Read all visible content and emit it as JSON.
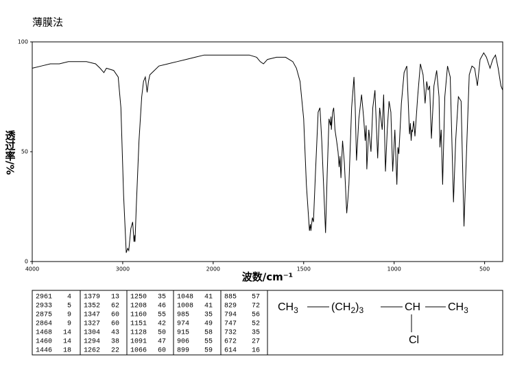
{
  "chart_data": {
    "type": "line",
    "title": "薄膜法",
    "x_label": "波数/cm⁻¹",
    "y_label": "透过率/%",
    "color": "#000000",
    "xlim": [
      4000,
      400
    ],
    "x_scale": {
      "break": 2000,
      "factor": 2
    },
    "xticks": [
      4000,
      3000,
      2000,
      1500,
      1000,
      500
    ],
    "ylim": [
      0,
      100
    ],
    "yticks": [
      0,
      50,
      100
    ],
    "x": [
      4000,
      3900,
      3800,
      3700,
      3600,
      3500,
      3400,
      3300,
      3250,
      3208,
      3180,
      3100,
      3050,
      3020,
      2990,
      2961,
      2945,
      2933,
      2910,
      2890,
      2875,
      2868,
      2864,
      2850,
      2820,
      2790,
      2770,
      2750,
      2730,
      2715,
      2700,
      2650,
      2600,
      2500,
      2400,
      2300,
      2200,
      2100,
      2000,
      1900,
      1800,
      1760,
      1740,
      1722,
      1700,
      1650,
      1600,
      1560,
      1540,
      1520,
      1500,
      1485,
      1468,
      1463,
      1460,
      1452,
      1446,
      1435,
      1420,
      1410,
      1400,
      1390,
      1379,
      1370,
      1360,
      1352,
      1349,
      1347,
      1340,
      1334,
      1327,
      1318,
      1310,
      1304,
      1299,
      1294,
      1285,
      1275,
      1262,
      1256,
      1250,
      1235,
      1222,
      1215,
      1208,
      1195,
      1180,
      1168,
      1160,
      1155,
      1151,
      1140,
      1128,
      1118,
      1106,
      1091,
      1080,
      1066,
      1058,
      1048,
      1038,
      1028,
      1018,
      1008,
      996,
      985,
      979,
      974,
      960,
      945,
      930,
      915,
      910,
      906,
      902,
      899,
      892,
      885,
      870,
      855,
      840,
      829,
      820,
      812,
      804,
      794,
      780,
      765,
      752,
      747,
      740,
      732,
      720,
      705,
      690,
      672,
      660,
      645,
      630,
      614,
      600,
      585,
      570,
      555,
      540,
      525,
      505,
      490,
      470,
      455,
      440,
      425,
      410,
      400
    ],
    "values": [
      88,
      89,
      90,
      90,
      91,
      91,
      91,
      90,
      88,
      86,
      88,
      87,
      84,
      70,
      30,
      4,
      6,
      5,
      15,
      18,
      9,
      12,
      9,
      25,
      55,
      75,
      82,
      84,
      77,
      82,
      85,
      87,
      89,
      90,
      91,
      92,
      93,
      94,
      94,
      94,
      94,
      93,
      91,
      90,
      92,
      93,
      93,
      91,
      88,
      82,
      65,
      35,
      14,
      17,
      14,
      20,
      18,
      40,
      68,
      70,
      55,
      35,
      13,
      40,
      65,
      62,
      66,
      60,
      68,
      70,
      60,
      55,
      50,
      43,
      48,
      38,
      55,
      45,
      22,
      28,
      35,
      70,
      84,
      70,
      46,
      65,
      76,
      65,
      55,
      62,
      42,
      60,
      50,
      70,
      78,
      47,
      70,
      60,
      76,
      41,
      60,
      73,
      68,
      41,
      60,
      35,
      52,
      49,
      72,
      86,
      89,
      58,
      63,
      55,
      60,
      59,
      64,
      57,
      75,
      90,
      85,
      72,
      82,
      78,
      80,
      56,
      80,
      87,
      75,
      52,
      60,
      35,
      75,
      89,
      84,
      27,
      55,
      75,
      73,
      16,
      50,
      85,
      89,
      88,
      80,
      92,
      95,
      93,
      88,
      92,
      94,
      88,
      80,
      78
    ]
  },
  "peak_table": {
    "columns": [
      [
        [
          2961,
          4
        ],
        [
          2933,
          5
        ],
        [
          2875,
          9
        ],
        [
          2864,
          9
        ],
        [
          1468,
          14
        ],
        [
          1460,
          14
        ],
        [
          1446,
          18
        ]
      ],
      [
        [
          1379,
          13
        ],
        [
          1352,
          62
        ],
        [
          1347,
          60
        ],
        [
          1327,
          60
        ],
        [
          1304,
          43
        ],
        [
          1294,
          38
        ],
        [
          1262,
          22
        ]
      ],
      [
        [
          1250,
          35
        ],
        [
          1208,
          46
        ],
        [
          1160,
          55
        ],
        [
          1151,
          42
        ],
        [
          1128,
          50
        ],
        [
          1091,
          47
        ],
        [
          1066,
          60
        ]
      ],
      [
        [
          1048,
          41
        ],
        [
          1008,
          41
        ],
        [
          985,
          35
        ],
        [
          974,
          49
        ],
        [
          915,
          58
        ],
        [
          906,
          55
        ],
        [
          899,
          59
        ]
      ],
      [
        [
          885,
          57
        ],
        [
          829,
          72
        ],
        [
          794,
          56
        ],
        [
          747,
          52
        ],
        [
          732,
          35
        ],
        [
          672,
          27
        ],
        [
          614,
          16
        ]
      ]
    ]
  },
  "structure": {
    "groups": [
      {
        "text": "CH",
        "sub": "3"
      },
      {
        "text": "(CH",
        "sub": "2",
        "after": ")",
        "sub2": "3"
      },
      {
        "text": "CH"
      },
      {
        "text": "CH",
        "sub": "3"
      }
    ],
    "substituent": "Cl"
  }
}
